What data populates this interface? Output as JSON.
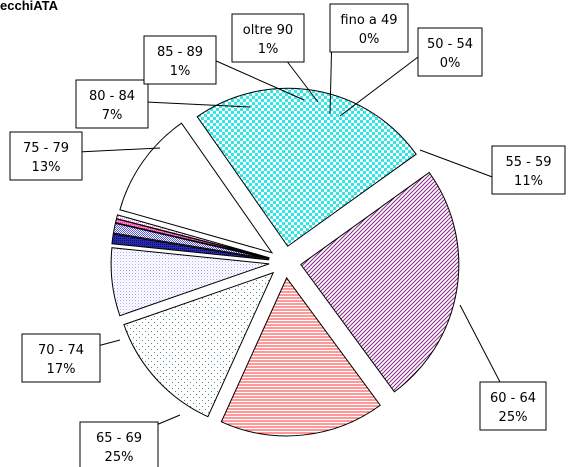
{
  "title": "ecchiATA",
  "chart_data": {
    "type": "pie",
    "title": "ecchiATA",
    "slices": [
      {
        "label": "fino a 49",
        "value": 0,
        "percent_label": "0%",
        "color": "#ff3fb0",
        "pattern": "dense-pink"
      },
      {
        "label": "50 - 54",
        "value": 0,
        "percent_label": "0%",
        "color": "#ff3fb0",
        "pattern": "light-pink"
      },
      {
        "label": "55 - 59",
        "value": 11,
        "percent_label": "11%",
        "color": "#ffffff",
        "pattern": "none"
      },
      {
        "label": "60 - 64",
        "value": 25,
        "percent_label": "25%",
        "color": "#33e6e6",
        "pattern": "checker"
      },
      {
        "label": "65 - 69",
        "value": 25,
        "percent_label": "25%",
        "color": "#8a2a8a",
        "pattern": "diagonal"
      },
      {
        "label": "70 - 74",
        "value": 17,
        "percent_label": "17%",
        "color": "#ff3333",
        "pattern": "horizontal"
      },
      {
        "label": "75 - 79",
        "value": 13,
        "percent_label": "13%",
        "color": "#5aa2a2",
        "pattern": "dots"
      },
      {
        "label": "80 - 84",
        "value": 7,
        "percent_label": "7%",
        "color": "#a8a8ff",
        "pattern": "fine-dots"
      },
      {
        "label": "85 - 89",
        "value": 1,
        "percent_label": "1%",
        "color": "#1f1f9e",
        "pattern": "dense-blue"
      },
      {
        "label": "oltre 90",
        "value": 1,
        "percent_label": "1%",
        "color": "#6a6ae0",
        "pattern": "medium-blue"
      }
    ],
    "legend": "none"
  }
}
